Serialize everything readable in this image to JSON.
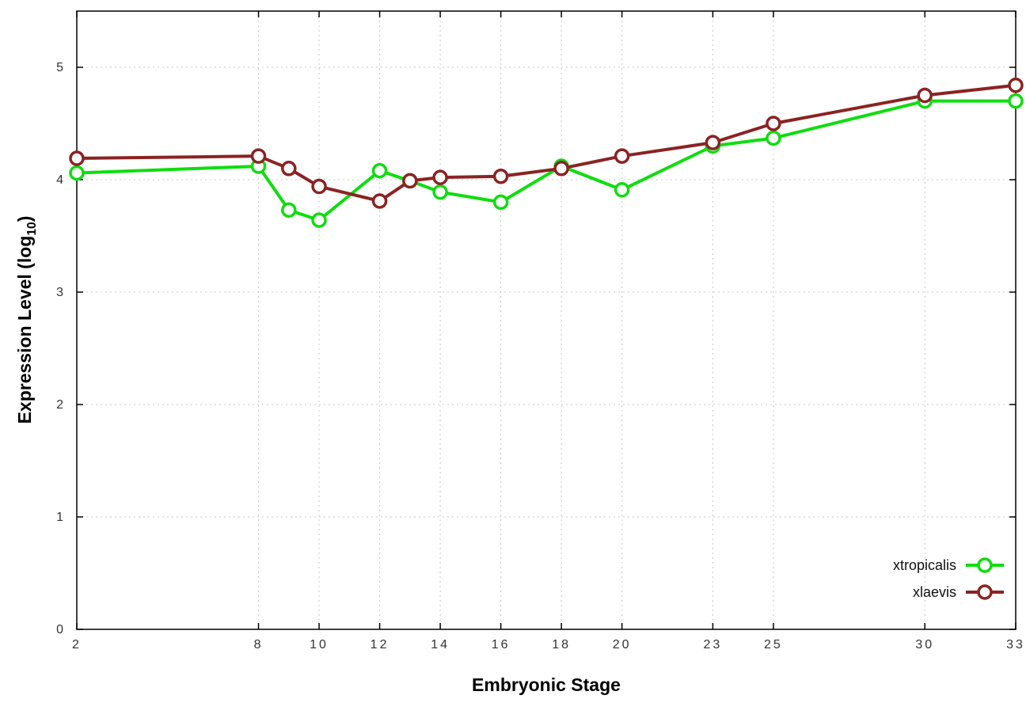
{
  "chart_data": {
    "type": "line",
    "title": "",
    "xlabel": "Embryonic Stage",
    "ylabel": {
      "main": "Expression Level (log",
      "sub": "10",
      "end": ")"
    },
    "xlim": [
      2,
      33
    ],
    "ylim": [
      0,
      5.5
    ],
    "xticks": [
      2,
      8,
      10,
      12,
      14,
      16,
      18,
      20,
      23,
      25,
      30,
      33
    ],
    "yticks": [
      0,
      1,
      2,
      3,
      4,
      5
    ],
    "grid": true,
    "legend_position": "bottom-right-inside",
    "x": [
      2,
      8,
      9,
      10,
      12,
      13,
      14,
      16,
      18,
      20,
      23,
      25,
      30,
      33
    ],
    "series": [
      {
        "name": "xtropicalis",
        "color": "#0fdd0f",
        "values": [
          4.06,
          4.12,
          3.73,
          3.64,
          4.08,
          3.99,
          3.89,
          3.8,
          4.12,
          3.91,
          4.3,
          4.37,
          4.7,
          4.7
        ]
      },
      {
        "name": "xlaevis",
        "color": "#8b2323",
        "values": [
          4.19,
          4.21,
          4.1,
          3.94,
          3.81,
          3.99,
          4.02,
          4.03,
          4.1,
          4.21,
          4.33,
          4.5,
          4.75,
          4.84
        ]
      }
    ]
  }
}
